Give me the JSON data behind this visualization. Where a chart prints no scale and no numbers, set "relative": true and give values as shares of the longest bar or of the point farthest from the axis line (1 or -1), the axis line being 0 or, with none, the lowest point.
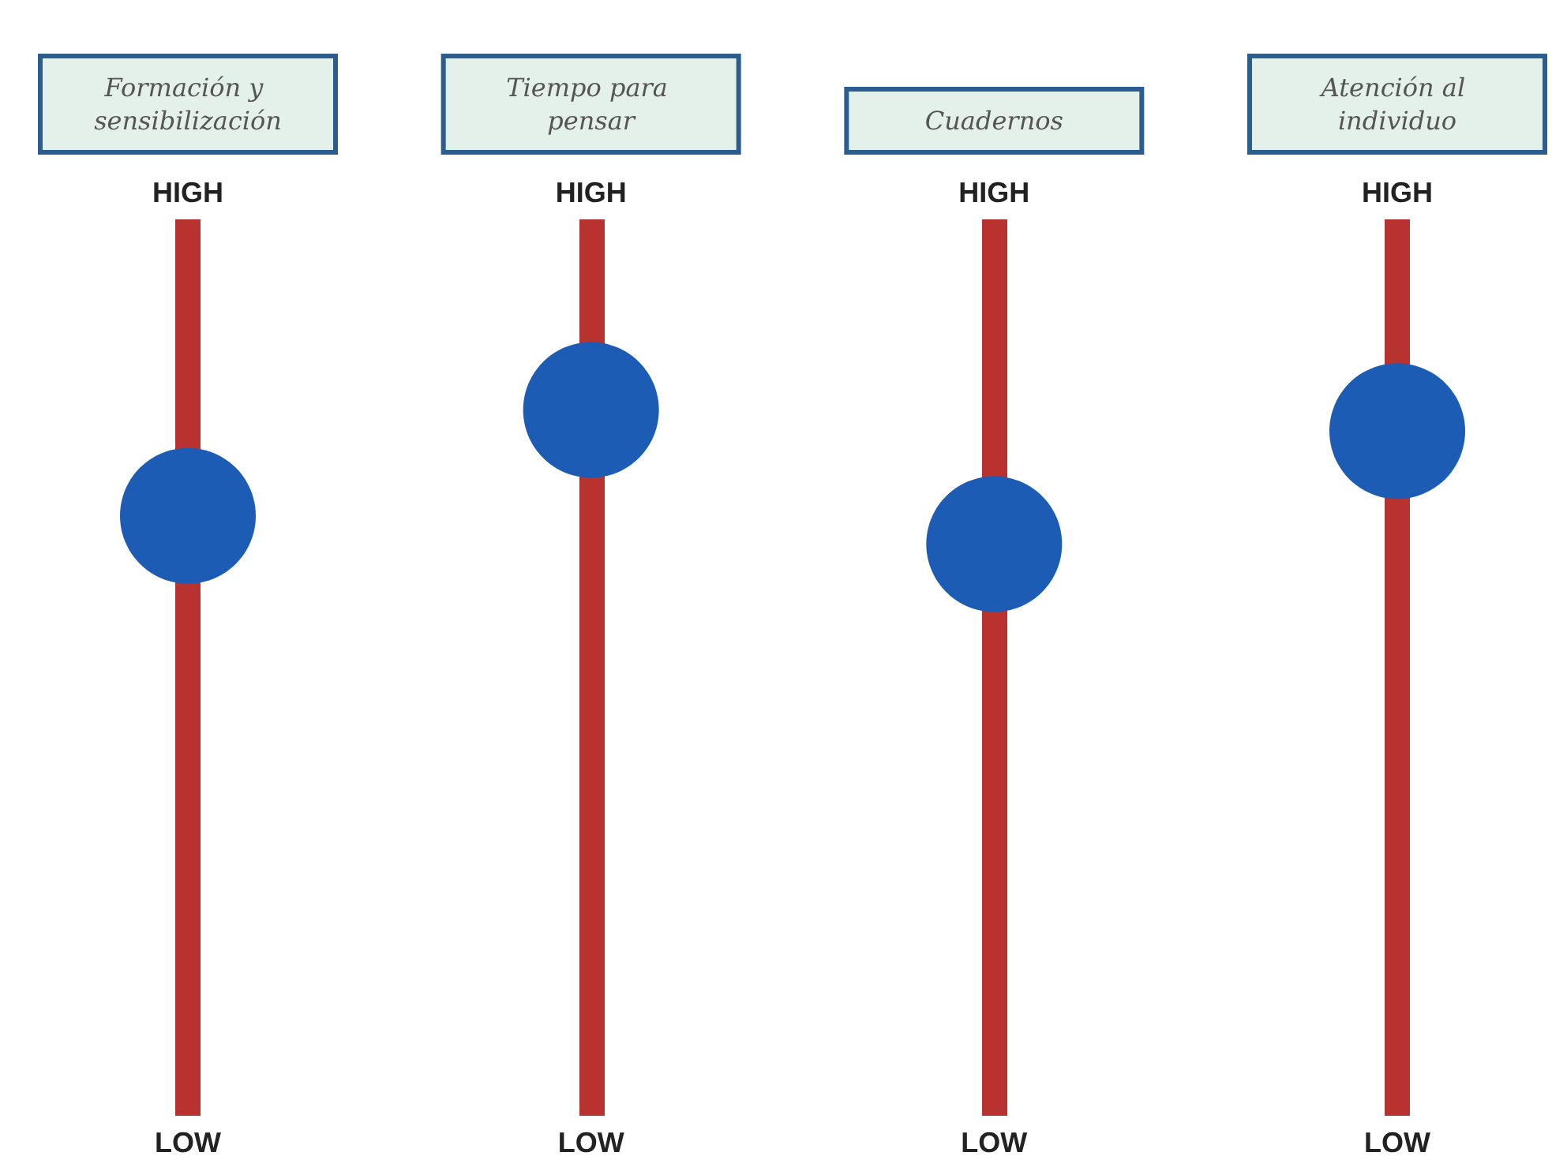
{
  "chart_data": {
    "type": "scatter",
    "relative": true,
    "categories": [
      "Formación y sensibilización",
      "Tiempo para pensar",
      "Cuadernos",
      "Atención al individuo"
    ],
    "values": [
      0.85,
      1,
      0.81,
      0.97
    ],
    "color": "#1c5cb4",
    "marker": "circle",
    "grid": "x",
    "annotations": [
      "HIGH",
      "LOW"
    ]
  }
}
